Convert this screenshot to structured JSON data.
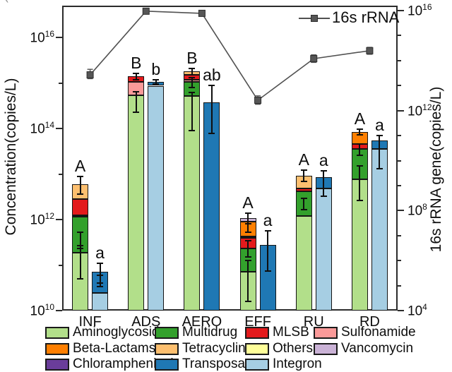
{
  "figure": {
    "background": "#ffffff",
    "artifact_mark": "`"
  },
  "series_colors": {
    "Aminoglycoside": "#b2df8a",
    "Multidrug": "#33a02c",
    "MLSB": "#e31a1c",
    "Sulfonamide": "#fb9a99",
    "Beta-Lactams": "#ff7f00",
    "Tetracycline": "#fdbf6f",
    "Others": "#ffff99",
    "Vancomycin": "#cab2d6",
    "Chloramphenicol": "#6a3d9a",
    "Transposase": "#1f78b4",
    "Integron": "#a6cee3"
  },
  "legend": {
    "items": [
      {
        "label": "Aminoglycoside",
        "color": "#b2df8a"
      },
      {
        "label": "Multidrug",
        "color": "#33a02c"
      },
      {
        "label": "MLSB",
        "color": "#e31a1c"
      },
      {
        "label": "Sulfonamide",
        "color": "#fb9a99"
      },
      {
        "label": "Beta-Lactams",
        "color": "#ff7f00"
      },
      {
        "label": "Tetracycline",
        "color": "#fdbf6f"
      },
      {
        "label": "Others",
        "color": "#ffff99"
      },
      {
        "label": "Vancomycin",
        "color": "#cab2d6"
      },
      {
        "label": "Chloramphenicol",
        "color": "#6a3d9a"
      },
      {
        "label": "Transposase",
        "color": "#1f78b4"
      },
      {
        "label": "Integron",
        "color": "#a6cee3"
      }
    ]
  },
  "chart_data": {
    "type": "bar",
    "subtype": "stacked-log-bars-with-line-overlay",
    "categories": [
      "INF",
      "ADS",
      "AERO",
      "EFF",
      "RU",
      "RD"
    ],
    "stack_baseline": 10000000000.0,
    "left_axis": {
      "label": "Concentration(copies/L)",
      "scale": "log",
      "tick_exps": [
        10,
        11,
        12,
        13,
        14,
        15,
        16
      ],
      "labeled_exps": [
        10,
        12,
        14,
        16
      ],
      "range_exps": [
        10,
        16.7
      ]
    },
    "right_axis": {
      "label": "16s rRNA gene(copies/L)",
      "scale": "log",
      "tick_exps": [
        4,
        5,
        6,
        7,
        8,
        9,
        10,
        11,
        12,
        13,
        14,
        15,
        16
      ],
      "labeled_exps": [
        4,
        8,
        12,
        16
      ],
      "range_exps": [
        4,
        16.2
      ]
    },
    "bar_groups": [
      {
        "category": "INF",
        "letter_arg": "A",
        "letter_mge": "a",
        "arg_stack": [
          {
            "series": "Aminoglycoside",
            "top": 190000000000.0
          },
          {
            "series": "Multidrug",
            "top": 1150000000000.0
          },
          {
            "series": "Beta-Lactams",
            "top": 1260000000000.0
          },
          {
            "series": "MLSB",
            "top": 2800000000000.0
          },
          {
            "series": "Tetracycline",
            "top": 5900000000000.0
          }
        ],
        "arg_errors": [
          {
            "at": 5900000000000.0,
            "lo": 3600000000000.0,
            "hi": 9000000000000.0
          },
          {
            "at": 350000000000.0,
            "lo": 230000000000.0,
            "hi": 520000000000.0
          },
          {
            "at": 190000000000.0,
            "lo": 50000000000.0,
            "hi": 270000000000.0
          }
        ],
        "mge_stack": [
          {
            "series": "Integron",
            "top": 24000000000.0
          },
          {
            "series": "Transposase",
            "top": 72000000000.0
          }
        ],
        "mge_errors": [
          {
            "at": 72000000000.0,
            "lo": 40000000000.0,
            "hi": 110000000000.0
          },
          {
            "at": 45000000000.0,
            "lo": 34000000000.0,
            "hi": 60000000000.0
          }
        ]
      },
      {
        "category": "ADS",
        "letter_arg": "B",
        "letter_mge": "b",
        "arg_stack": [
          {
            "series": "Aminoglycoside",
            "top": 530000000000000.0
          },
          {
            "series": "Sulfonamide",
            "top": 1050000000000000.0
          },
          {
            "series": "MLSB",
            "top": 1400000000000000.0
          }
        ],
        "arg_errors": [
          {
            "at": 1400000000000000.0,
            "lo": 1200000000000000.0,
            "hi": 1650000000000000.0
          },
          {
            "at": 530000000000000.0,
            "lo": 230000000000000.0,
            "hi": 650000000000000.0
          }
        ],
        "mge_stack": [
          {
            "series": "Integron",
            "top": 870000000000000.0
          },
          {
            "series": "Transposase",
            "top": 1070000000000000.0
          }
        ],
        "mge_errors": [
          {
            "at": 1070000000000000.0,
            "lo": 950000000000000.0,
            "hi": 1200000000000000.0
          }
        ]
      },
      {
        "category": "AERO",
        "letter_arg": "B",
        "letter_mge": "ab",
        "arg_stack": [
          {
            "series": "Aminoglycoside",
            "top": 510000000000000.0
          },
          {
            "series": "Multidrug",
            "top": 1050000000000000.0
          },
          {
            "series": "Sulfonamide",
            "top": 1170000000000000.0
          },
          {
            "series": "MLSB",
            "top": 1500000000000000.0
          },
          {
            "series": "Tetracycline",
            "top": 1780000000000000.0
          }
        ],
        "arg_errors": [
          {
            "at": 1780000000000000.0,
            "lo": 1500000000000000.0,
            "hi": 2100000000000000.0
          },
          {
            "at": 510000000000000.0,
            "lo": 90000000000000.0,
            "hi": 630000000000000.0
          },
          {
            "at": 1050000000000000.0,
            "lo": 800000000000000.0,
            "hi": 1300000000000000.0
          }
        ],
        "mge_stack": [
          {
            "series": "Transposase",
            "top": 370000000000000.0
          }
        ],
        "mge_errors": [
          {
            "at": 370000000000000.0,
            "lo": 78000000000000.0,
            "hi": 880000000000000.0
          }
        ]
      },
      {
        "category": "EFF",
        "letter_arg": "A",
        "letter_mge": "a",
        "arg_stack": [
          {
            "series": "Aminoglycoside",
            "top": 72000000000.0
          },
          {
            "series": "Multidrug",
            "top": 230000000000.0
          },
          {
            "series": "MLSB",
            "top": 390000000000.0
          },
          {
            "series": "Others",
            "top": 430000000000.0
          },
          {
            "series": "Beta-Lactams",
            "top": 890000000000.0
          },
          {
            "series": "Vancomycin",
            "top": 1060000000000.0
          }
        ],
        "arg_errors": [
          {
            "at": 1060000000000.0,
            "lo": 800000000000.0,
            "hi": 1360000000000.0
          },
          {
            "at": 650000000000.0,
            "lo": 530000000000.0,
            "hi": 800000000000.0
          },
          {
            "at": 230000000000.0,
            "lo": 150000000000.0,
            "hi": 340000000000.0
          },
          {
            "at": 72000000000.0,
            "lo": 16000000000.0,
            "hi": 125000000000.0
          }
        ],
        "mge_stack": [
          {
            "series": "Transposase",
            "top": 280000000000.0
          }
        ],
        "mge_errors": [
          {
            "at": 280000000000.0,
            "lo": 75000000000.0,
            "hi": 570000000000.0
          }
        ]
      },
      {
        "category": "RU",
        "letter_arg": "A",
        "letter_mge": "a",
        "arg_stack": [
          {
            "series": "Aminoglycoside",
            "top": 1200000000000.0
          },
          {
            "series": "Multidrug",
            "top": 4200000000000.0
          },
          {
            "series": "MLSB",
            "top": 4800000000000.0
          },
          {
            "series": "Tetracycline",
            "top": 9100000000000.0
          }
        ],
        "arg_errors": [
          {
            "at": 9100000000000.0,
            "lo": 7000000000000.0,
            "hi": 12000000000000.0
          },
          {
            "at": 2200000000000.0,
            "lo": 1650000000000.0,
            "hi": 2900000000000.0
          }
        ],
        "mge_stack": [
          {
            "series": "Integron",
            "top": 4800000000000.0
          },
          {
            "series": "Transposase",
            "top": 8500000000000.0
          }
        ],
        "mge_errors": [
          {
            "at": 8500000000000.0,
            "lo": 3300000000000.0,
            "hi": 11800000000000.0
          }
        ]
      },
      {
        "category": "RD",
        "letter_arg": "A",
        "letter_mge": "a",
        "arg_stack": [
          {
            "series": "Aminoglycoside",
            "top": 7600000000000.0
          },
          {
            "series": "Multidrug",
            "top": 35000000000000.0
          },
          {
            "series": "MLSB",
            "top": 46000000000000.0
          },
          {
            "series": "Beta-Lactams",
            "top": 85000000000000.0
          }
        ],
        "arg_errors": [
          {
            "at": 85000000000000.0,
            "lo": 72000000000000.0,
            "hi": 98000000000000.0
          },
          {
            "at": 7600000000000.0,
            "lo": 2600000000000.0,
            "hi": 15000000000000.0
          },
          {
            "at": 35000000000000.0,
            "lo": 26000000000000.0,
            "hi": 45000000000000.0
          }
        ],
        "mge_stack": [
          {
            "series": "Integron",
            "top": 35000000000000.0
          },
          {
            "series": "Transposase",
            "top": 55000000000000.0
          }
        ],
        "mge_errors": [
          {
            "at": 55000000000000.0,
            "lo": 13000000000000.0,
            "hi": 70000000000000.0
          }
        ]
      }
    ],
    "line_series": {
      "name": "16s rRNA",
      "axis": "right",
      "color": "#515151",
      "values": [
        27000000000000.0,
        9500000000000000.0,
        7800000000000000.0,
        2600000000000.0,
        120000000000000.0,
        250000000000000.0
      ],
      "errors": [
        [
          19000000000000.0,
          45000000000000.0
        ],
        [
          8200000000000000.0,
          1.08e+16
        ],
        [
          6600000000000000.0,
          9200000000000000.0
        ],
        [
          1800000000000.0,
          3900000000000.0
        ],
        [
          85000000000000.0,
          170000000000000.0
        ],
        [
          180000000000000.0,
          340000000000000.0
        ]
      ]
    }
  }
}
